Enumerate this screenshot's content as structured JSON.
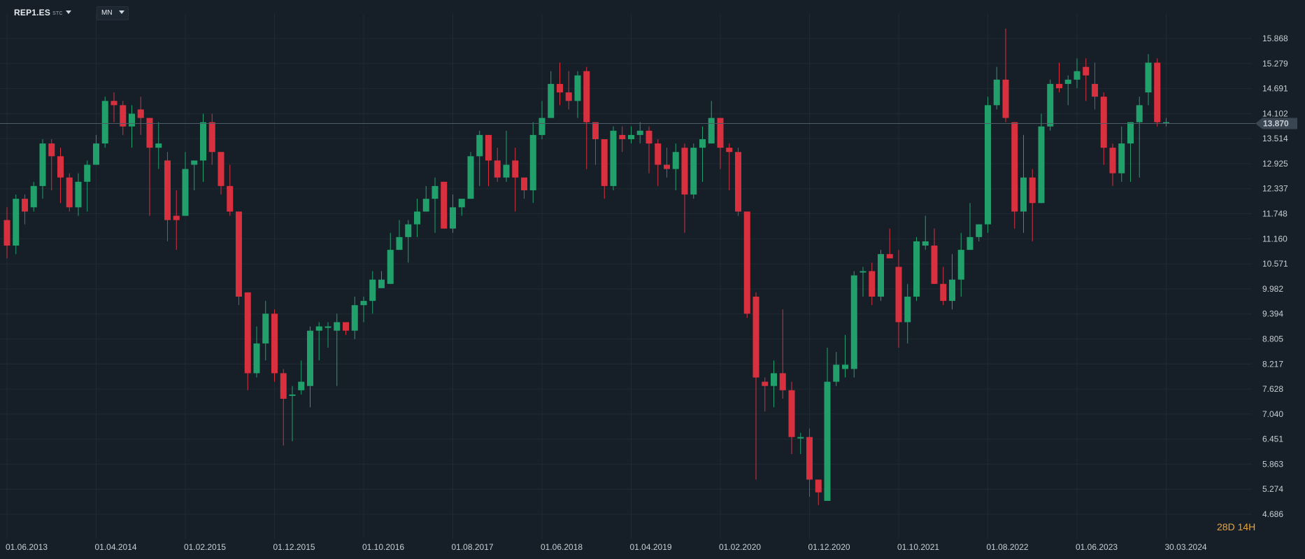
{
  "toolbar": {
    "symbol": "REP1.ES",
    "market": "STC",
    "timeframe": "MN"
  },
  "timer": {
    "d_val": "28",
    "d_unit": "D",
    "h_val": "14",
    "h_unit": "H"
  },
  "colors": {
    "background": "#161f27",
    "up": "#21a06b",
    "down": "#d9303f",
    "grid": "#1f2a33",
    "price_line": "#4e5c68"
  },
  "chart_data": {
    "type": "candlestick",
    "title": "",
    "xlabel": "",
    "ylabel": "",
    "ylim": [
      4.686,
      15.868
    ],
    "y_ticks": [
      "15.868",
      "15.279",
      "14.691",
      "14.102",
      "13.514",
      "12.925",
      "12.337",
      "11.748",
      "11.160",
      "10.571",
      "9.982",
      "9.394",
      "8.805",
      "8.217",
      "7.628",
      "7.040",
      "6.451",
      "5.863",
      "5.274",
      "4.686"
    ],
    "x_ticks": [
      "01.06.2013",
      "01.04.2014",
      "01.02.2015",
      "01.12.2015",
      "01.10.2016",
      "01.08.2017",
      "01.06.2018",
      "01.04.2019",
      "01.02.2020",
      "01.12.2020",
      "01.10.2021",
      "01.08.2022",
      "01.06.2023",
      "30.03.2024"
    ],
    "current_price": "13.870",
    "start": "2013-05",
    "candles": [
      [
        11.6,
        11.0,
        11.9,
        10.7
      ],
      [
        11.0,
        12.1,
        12.2,
        10.8
      ],
      [
        12.1,
        11.8,
        12.2,
        11.5
      ],
      [
        11.9,
        12.4,
        12.5,
        11.8
      ],
      [
        12.4,
        13.4,
        13.5,
        12.1
      ],
      [
        13.4,
        13.1,
        13.5,
        12.3
      ],
      [
        13.1,
        12.6,
        13.3,
        12.0
      ],
      [
        12.6,
        11.9,
        12.7,
        11.8
      ],
      [
        11.9,
        12.5,
        12.7,
        11.7
      ],
      [
        12.5,
        12.9,
        13.0,
        11.8
      ],
      [
        12.9,
        13.4,
        13.6,
        12.9
      ],
      [
        13.4,
        14.4,
        14.5,
        13.3
      ],
      [
        14.4,
        14.3,
        14.6,
        13.9
      ],
      [
        14.3,
        13.8,
        14.4,
        13.6
      ],
      [
        13.8,
        14.1,
        14.3,
        13.3
      ],
      [
        14.2,
        14.0,
        14.5,
        13.6
      ],
      [
        14.0,
        13.3,
        14.0,
        11.7
      ],
      [
        13.3,
        13.4,
        13.9,
        12.8
      ],
      [
        13.0,
        11.6,
        13.2,
        11.1
      ],
      [
        11.7,
        11.6,
        12.3,
        10.9
      ],
      [
        11.7,
        12.8,
        13.2,
        11.7
      ],
      [
        12.9,
        13.0,
        13.0,
        12.3
      ],
      [
        13.0,
        13.9,
        14.1,
        12.5
      ],
      [
        13.9,
        13.2,
        14.1,
        12.9
      ],
      [
        13.2,
        12.4,
        13.2,
        12.2
      ],
      [
        12.4,
        11.8,
        12.9,
        11.7
      ],
      [
        11.8,
        9.8,
        11.8,
        9.6
      ],
      [
        9.9,
        8.0,
        9.9,
        7.6
      ],
      [
        8.0,
        8.7,
        9.1,
        7.9
      ],
      [
        8.7,
        9.4,
        9.7,
        8.3
      ],
      [
        9.4,
        8.0,
        9.5,
        7.8
      ],
      [
        8.0,
        7.4,
        8.1,
        6.3
      ],
      [
        7.5,
        7.5,
        7.7,
        6.4
      ],
      [
        7.6,
        7.8,
        8.3,
        7.5
      ],
      [
        7.7,
        9.0,
        9.1,
        7.2
      ],
      [
        9.0,
        9.1,
        9.2,
        8.3
      ],
      [
        9.1,
        9.1,
        9.2,
        8.6
      ],
      [
        9.0,
        9.2,
        9.4,
        7.7
      ],
      [
        9.2,
        9.0,
        9.2,
        8.9
      ],
      [
        9.0,
        9.6,
        9.8,
        8.8
      ],
      [
        9.6,
        9.7,
        9.8,
        9.2
      ],
      [
        9.7,
        10.2,
        10.4,
        9.4
      ],
      [
        10.0,
        10.2,
        10.4,
        10.0
      ],
      [
        10.1,
        10.9,
        11.3,
        10.1
      ],
      [
        10.9,
        11.2,
        11.6,
        10.9
      ],
      [
        11.2,
        11.5,
        11.6,
        10.6
      ],
      [
        11.5,
        11.8,
        12.1,
        11.2
      ],
      [
        11.8,
        12.1,
        12.4,
        11.8
      ],
      [
        12.1,
        12.4,
        12.6,
        11.3
      ],
      [
        12.5,
        11.4,
        12.5,
        11.4
      ],
      [
        11.4,
        11.9,
        12.2,
        11.3
      ],
      [
        11.9,
        12.1,
        12.1,
        11.7
      ],
      [
        12.1,
        13.1,
        13.2,
        12.1
      ],
      [
        13.1,
        13.6,
        13.7,
        12.4
      ],
      [
        13.6,
        13.0,
        13.6,
        12.4
      ],
      [
        13.0,
        12.6,
        13.3,
        12.5
      ],
      [
        12.6,
        12.9,
        13.7,
        12.5
      ],
      [
        13.0,
        12.6,
        13.3,
        11.8
      ],
      [
        12.6,
        12.3,
        12.5,
        12.1
      ],
      [
        12.3,
        13.6,
        13.9,
        12.0
      ],
      [
        13.6,
        14.0,
        14.4,
        13.5
      ],
      [
        14.0,
        14.8,
        15.1,
        14.0
      ],
      [
        14.8,
        14.6,
        15.3,
        14.3
      ],
      [
        14.6,
        14.4,
        15.1,
        14.2
      ],
      [
        14.4,
        15.0,
        15.1,
        14.0
      ],
      [
        15.1,
        13.9,
        15.2,
        12.8
      ],
      [
        13.9,
        13.5,
        13.9,
        12.9
      ],
      [
        13.5,
        12.4,
        13.4,
        12.1
      ],
      [
        12.4,
        13.7,
        13.8,
        12.3
      ],
      [
        13.6,
        13.5,
        13.8,
        13.2
      ],
      [
        13.5,
        13.6,
        13.8,
        13.4
      ],
      [
        13.6,
        13.7,
        13.9,
        13.4
      ],
      [
        13.7,
        13.4,
        13.8,
        12.7
      ],
      [
        13.4,
        12.9,
        13.5,
        12.4
      ],
      [
        12.9,
        12.8,
        13.3,
        12.6
      ],
      [
        12.8,
        13.2,
        13.4,
        12.3
      ],
      [
        13.3,
        12.2,
        13.4,
        11.3
      ],
      [
        12.2,
        13.3,
        13.4,
        12.1
      ],
      [
        13.3,
        13.5,
        13.8,
        12.5
      ],
      [
        13.4,
        14.0,
        14.4,
        13.4
      ],
      [
        14.0,
        13.3,
        14.0,
        12.8
      ],
      [
        13.3,
        13.2,
        13.4,
        12.3
      ],
      [
        13.2,
        11.8,
        13.3,
        11.7
      ],
      [
        11.8,
        9.4,
        11.8,
        9.3
      ],
      [
        9.8,
        7.9,
        9.9,
        5.5
      ],
      [
        7.8,
        7.7,
        7.9,
        7.1
      ],
      [
        7.7,
        8.0,
        8.3,
        7.2
      ],
      [
        8.0,
        7.6,
        9.5,
        7.4
      ],
      [
        7.6,
        6.5,
        7.8,
        6.1
      ],
      [
        6.5,
        6.5,
        6.6,
        6.1
      ],
      [
        6.5,
        5.5,
        6.7,
        5.1
      ],
      [
        5.5,
        5.2,
        5.4,
        4.9
      ],
      [
        5.0,
        7.8,
        8.6,
        5.1
      ],
      [
        7.8,
        8.2,
        8.5,
        7.7
      ],
      [
        8.1,
        8.2,
        8.9,
        7.9
      ],
      [
        8.1,
        10.3,
        10.4,
        7.9
      ],
      [
        10.4,
        10.4,
        10.5,
        9.8
      ],
      [
        10.4,
        9.8,
        10.6,
        9.6
      ],
      [
        9.8,
        10.8,
        10.9,
        9.7
      ],
      [
        10.8,
        10.7,
        11.4,
        10.7
      ],
      [
        10.5,
        9.2,
        10.9,
        8.6
      ],
      [
        9.2,
        9.8,
        10.1,
        8.7
      ],
      [
        9.8,
        11.1,
        11.2,
        9.7
      ],
      [
        11.0,
        11.1,
        11.7,
        10.9
      ],
      [
        11.0,
        10.1,
        11.4,
        10.1
      ],
      [
        10.1,
        9.7,
        10.5,
        9.6
      ],
      [
        9.7,
        10.2,
        10.8,
        9.5
      ],
      [
        10.2,
        10.9,
        11.3,
        9.8
      ],
      [
        10.9,
        11.2,
        12.0,
        10.9
      ],
      [
        11.2,
        11.5,
        11.5,
        11.1
      ],
      [
        11.5,
        14.3,
        14.5,
        11.3
      ],
      [
        14.3,
        14.9,
        15.2,
        14.2
      ],
      [
        14.9,
        14.0,
        16.1,
        13.9
      ],
      [
        13.9,
        11.8,
        13.9,
        11.4
      ],
      [
        11.8,
        12.6,
        13.6,
        11.3
      ],
      [
        12.6,
        12.0,
        12.8,
        11.1
      ],
      [
        12.0,
        13.8,
        14.1,
        12.0
      ],
      [
        13.8,
        14.8,
        14.9,
        13.7
      ],
      [
        14.8,
        14.7,
        15.3,
        14.6
      ],
      [
        14.8,
        14.9,
        15.0,
        14.3
      ],
      [
        14.9,
        15.1,
        15.4,
        14.7
      ],
      [
        15.2,
        15.0,
        15.4,
        14.4
      ],
      [
        14.8,
        14.5,
        15.3,
        14.2
      ],
      [
        14.5,
        13.3,
        14.6,
        12.9
      ],
      [
        13.3,
        12.7,
        13.4,
        12.4
      ],
      [
        12.7,
        13.4,
        13.8,
        12.5
      ],
      [
        13.4,
        13.9,
        13.9,
        12.5
      ],
      [
        13.9,
        14.3,
        14.5,
        12.6
      ],
      [
        14.6,
        15.3,
        15.5,
        14.3
      ],
      [
        15.3,
        13.9,
        15.4,
        13.8
      ],
      [
        13.9,
        13.9,
        14.0,
        13.8
      ]
    ]
  }
}
